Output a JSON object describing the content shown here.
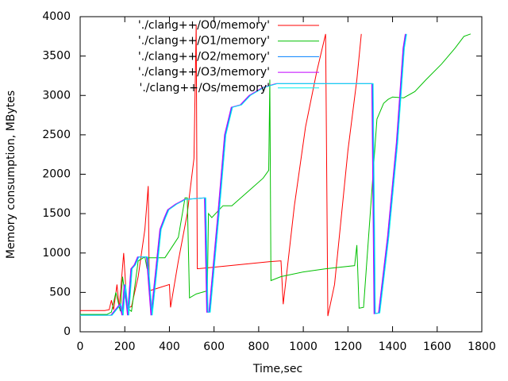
{
  "chart_data": {
    "type": "line",
    "ylabel": "Memory consumption, MBytes",
    "xlabel": "Time,sec",
    "xlim": [
      0,
      1800
    ],
    "xticks": [
      0,
      200,
      400,
      600,
      800,
      1000,
      1200,
      1400,
      1600,
      1800
    ],
    "ylim": [
      0,
      4000
    ],
    "yticks": [
      0,
      500,
      1000,
      1500,
      2000,
      2500,
      3000,
      3500,
      4000
    ],
    "grid": false,
    "legend": "top-left",
    "series": [
      {
        "name": "'./clang++/O0/memory'",
        "color": "#ff0000",
        "x": [
          0,
          110,
          130,
          140,
          150,
          165,
          175,
          195,
          210,
          230,
          260,
          290,
          305,
          310,
          400,
          405,
          440,
          480,
          510,
          520,
          525,
          600,
          850,
          900,
          910,
          960,
          1010,
          1060,
          1100,
          1110,
          1140,
          1200,
          1240,
          1260
        ],
        "values": [
          270,
          270,
          280,
          400,
          280,
          600,
          300,
          1000,
          300,
          320,
          700,
          1300,
          1850,
          520,
          600,
          310,
          900,
          1500,
          2200,
          3900,
          800,
          820,
          890,
          900,
          350,
          1600,
          2600,
          3300,
          3780,
          200,
          600,
          2300,
          3200,
          3780
        ]
      },
      {
        "name": "'./clang++/O1/memory'",
        "color": "#00c000",
        "x": [
          0,
          120,
          140,
          160,
          180,
          190,
          210,
          230,
          260,
          290,
          300,
          305,
          380,
          440,
          470,
          480,
          490,
          520,
          570,
          575,
          590,
          640,
          680,
          760,
          820,
          845,
          850,
          855,
          900,
          1000,
          1100,
          1230,
          1240,
          1250,
          1270,
          1300,
          1330,
          1360,
          1380,
          1400,
          1450,
          1500,
          1550,
          1620,
          1680,
          1720,
          1750
        ],
        "values": [
          220,
          220,
          250,
          500,
          260,
          700,
          300,
          260,
          900,
          950,
          800,
          940,
          940,
          1200,
          1700,
          1700,
          430,
          480,
          520,
          1500,
          1450,
          1600,
          1600,
          1800,
          1950,
          2050,
          3200,
          650,
          700,
          760,
          800,
          840,
          1100,
          300,
          310,
          1500,
          2700,
          2900,
          2950,
          2980,
          2970,
          3050,
          3200,
          3400,
          3600,
          3750,
          3780
        ]
      },
      {
        "name": "'./clang++/O2/memory'",
        "color": "#0080ff",
        "x": [
          0,
          140,
          180,
          190,
          200,
          215,
          230,
          245,
          260,
          300,
          320,
          340,
          360,
          380,
          395,
          430,
          470,
          560,
          570,
          580,
          620,
          650,
          680,
          720,
          760,
          820,
          880,
          1000,
          1310,
          1320,
          1340,
          1380,
          1420,
          1450,
          1460
        ],
        "values": [
          210,
          210,
          350,
          210,
          600,
          210,
          800,
          850,
          950,
          950,
          210,
          750,
          1300,
          1450,
          1550,
          1620,
          1680,
          1700,
          250,
          250,
          1500,
          2500,
          2850,
          2880,
          3000,
          3100,
          3150,
          3150,
          3150,
          230,
          240,
          1200,
          2400,
          3600,
          3780
        ]
      },
      {
        "name": "'./clang++/O3/memory'",
        "color": "#c000ff",
        "x": [
          0,
          137,
          177,
          187,
          197,
          212,
          227,
          242,
          257,
          297,
          317,
          337,
          357,
          377,
          392,
          427,
          467,
          557,
          567,
          577,
          617,
          647,
          677,
          717,
          757,
          817,
          877,
          997,
          1307,
          1317,
          1337,
          1377,
          1417,
          1447,
          1457
        ],
        "values": [
          210,
          210,
          350,
          210,
          600,
          210,
          800,
          850,
          950,
          950,
          210,
          750,
          1300,
          1450,
          1550,
          1620,
          1680,
          1700,
          250,
          250,
          1500,
          2500,
          2850,
          2880,
          3000,
          3100,
          3150,
          3150,
          3150,
          230,
          240,
          1200,
          2400,
          3600,
          3780
        ]
      },
      {
        "name": "'./clang++/Os/memory'",
        "color": "#00eeee",
        "x": [
          0,
          143,
          183,
          193,
          203,
          218,
          233,
          248,
          263,
          303,
          323,
          343,
          363,
          383,
          398,
          433,
          473,
          563,
          573,
          583,
          623,
          653,
          683,
          723,
          763,
          823,
          883,
          1003,
          1313,
          1323,
          1343,
          1383,
          1423,
          1453,
          1463
        ],
        "values": [
          210,
          210,
          350,
          210,
          600,
          210,
          800,
          850,
          950,
          950,
          210,
          750,
          1300,
          1450,
          1550,
          1620,
          1680,
          1700,
          250,
          250,
          1500,
          2500,
          2850,
          2880,
          3000,
          3100,
          3150,
          3150,
          3150,
          230,
          240,
          1200,
          2400,
          3600,
          3780
        ]
      }
    ]
  }
}
